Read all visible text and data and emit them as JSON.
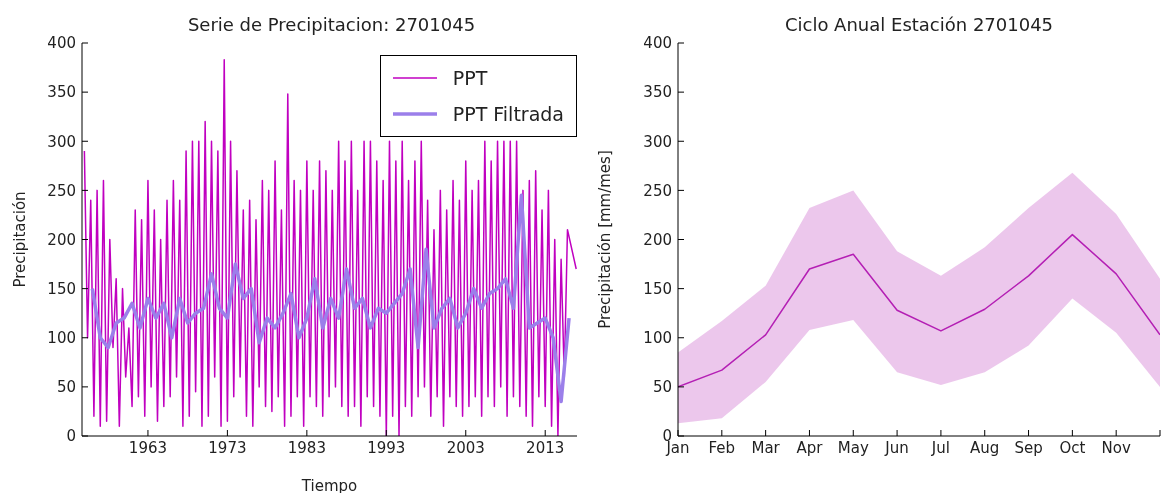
{
  "chart_data": [
    {
      "type": "line",
      "title": "Serie de Precipitacion: 2701045",
      "xlabel": "Tiempo",
      "ylabel": "Precipitación",
      "xlim": [
        1954.7,
        2017.0
      ],
      "xticks": [
        1963,
        1973,
        1983,
        1993,
        2003,
        2013
      ],
      "ylim": [
        0,
        400
      ],
      "yticks": [
        0,
        50,
        100,
        150,
        200,
        250,
        300,
        350,
        400
      ],
      "grid": false,
      "legend": "top right",
      "series": [
        {
          "name": "PPT",
          "color": "#c000c0",
          "x": [
            1955.0,
            1955.4,
            1955.8,
            1956.2,
            1956.6,
            1957.0,
            1957.4,
            1957.8,
            1958.2,
            1958.6,
            1959.0,
            1959.4,
            1959.8,
            1960.2,
            1960.6,
            1961.0,
            1961.4,
            1961.8,
            1962.2,
            1962.6,
            1963.0,
            1963.4,
            1963.8,
            1964.2,
            1964.6,
            1965.0,
            1965.4,
            1965.8,
            1966.2,
            1966.6,
            1967.0,
            1967.4,
            1967.8,
            1968.2,
            1968.6,
            1969.0,
            1969.4,
            1969.8,
            1970.2,
            1970.6,
            1971.0,
            1971.4,
            1971.8,
            1972.2,
            1972.6,
            1973.0,
            1973.4,
            1973.8,
            1974.2,
            1974.6,
            1975.0,
            1975.4,
            1975.8,
            1976.2,
            1976.6,
            1977.0,
            1977.4,
            1977.8,
            1978.2,
            1978.6,
            1979.0,
            1979.4,
            1979.8,
            1980.2,
            1980.6,
            1981.0,
            1981.4,
            1981.8,
            1982.2,
            1982.6,
            1983.0,
            1983.4,
            1983.8,
            1984.2,
            1984.6,
            1985.0,
            1985.4,
            1985.8,
            1986.2,
            1986.6,
            1987.0,
            1987.4,
            1987.8,
            1988.2,
            1988.6,
            1989.0,
            1989.4,
            1989.8,
            1990.2,
            1990.6,
            1991.0,
            1991.4,
            1991.8,
            1992.2,
            1992.6,
            1993.0,
            1993.4,
            1993.8,
            1994.2,
            1994.6,
            1995.0,
            1995.4,
            1995.8,
            1996.2,
            1996.6,
            1997.0,
            1997.4,
            1997.8,
            1998.2,
            1998.6,
            1999.0,
            1999.4,
            1999.8,
            2000.2,
            2000.6,
            2001.0,
            2001.4,
            2001.8,
            2002.2,
            2002.6,
            2003.0,
            2003.4,
            2003.8,
            2004.2,
            2004.6,
            2005.0,
            2005.4,
            2005.8,
            2006.2,
            2006.6,
            2007.0,
            2007.4,
            2007.8,
            2008.2,
            2008.6,
            2009.0,
            2009.4,
            2009.8,
            2010.2,
            2010.6,
            2011.0,
            2011.4,
            2011.8,
            2012.2,
            2012.6,
            2013.0,
            2013.4,
            2013.8,
            2014.2,
            2014.6,
            2015.0,
            2015.4,
            2015.8,
            2016.9
          ],
          "values": [
            290,
            100,
            240,
            20,
            250,
            10,
            260,
            15,
            200,
            90,
            160,
            10,
            150,
            60,
            110,
            30,
            230,
            40,
            220,
            20,
            260,
            50,
            230,
            15,
            200,
            30,
            240,
            40,
            260,
            60,
            240,
            10,
            290,
            20,
            300,
            45,
            300,
            10,
            320,
            20,
            300,
            60,
            290,
            10,
            383,
            15,
            300,
            40,
            270,
            60,
            230,
            20,
            240,
            10,
            220,
            50,
            260,
            30,
            250,
            25,
            280,
            40,
            230,
            10,
            348,
            20,
            260,
            40,
            250,
            10,
            280,
            40,
            250,
            30,
            280,
            20,
            270,
            40,
            250,
            50,
            300,
            30,
            280,
            20,
            300,
            30,
            250,
            10,
            300,
            40,
            300,
            30,
            280,
            20,
            260,
            0,
            300,
            20,
            280,
            0,
            300,
            30,
            260,
            20,
            280,
            40,
            300,
            50,
            240,
            20,
            210,
            40,
            250,
            10,
            230,
            40,
            260,
            30,
            240,
            20,
            280,
            30,
            250,
            40,
            260,
            20,
            300,
            40,
            280,
            30,
            300,
            50,
            300,
            20,
            300,
            40,
            300,
            30,
            250,
            20,
            260,
            10,
            270,
            40,
            230,
            30,
            250,
            10,
            200,
            0,
            180,
            60,
            210,
            170
          ]
        },
        {
          "name": "PPT Filtrada",
          "color": "#9b7fea",
          "x": [
            1956,
            1957,
            1958,
            1959,
            1960,
            1961,
            1962,
            1963,
            1964,
            1965,
            1966,
            1967,
            1968,
            1969,
            1970,
            1971,
            1972,
            1973,
            1974,
            1975,
            1976,
            1977,
            1978,
            1979,
            1980,
            1981,
            1982,
            1983,
            1984,
            1985,
            1986,
            1987,
            1988,
            1989,
            1990,
            1991,
            1992,
            1993,
            1994,
            1995,
            1996,
            1997,
            1998,
            1999,
            2000,
            2001,
            2002,
            2003,
            2004,
            2005,
            2006,
            2007,
            2008,
            2009,
            2010,
            2011,
            2012,
            2013,
            2014,
            2015,
            2016
          ],
          "values": [
            150,
            100,
            90,
            115,
            120,
            135,
            110,
            140,
            120,
            135,
            100,
            140,
            115,
            125,
            130,
            165,
            130,
            120,
            175,
            140,
            150,
            95,
            120,
            110,
            125,
            145,
            100,
            120,
            160,
            110,
            140,
            120,
            170,
            130,
            140,
            110,
            130,
            125,
            135,
            145,
            170,
            90,
            190,
            110,
            130,
            140,
            110,
            125,
            150,
            130,
            145,
            150,
            160,
            130,
            245,
            110,
            115,
            120,
            100,
            35,
            120
          ]
        }
      ]
    },
    {
      "type": "line",
      "title": "Ciclo Anual Estación 2701045",
      "ylabel": "Precipitación [mm/mes]",
      "categories": [
        "Jan",
        "Feb",
        "Mar",
        "Apr",
        "May",
        "Jun",
        "Jul",
        "Aug",
        "Sep",
        "Oct",
        "Nov",
        null
      ],
      "ylim": [
        0,
        400
      ],
      "yticks": [
        0,
        50,
        100,
        150,
        200,
        250,
        300,
        350,
        400
      ],
      "grid": false,
      "legend": false,
      "series": [
        {
          "color": "#b41fb4",
          "values": [
            50,
            67,
            103,
            170,
            185,
            128,
            107,
            129,
            163,
            205,
            165,
            103
          ],
          "lower": [
            13,
            18,
            55,
            108,
            118,
            65,
            52,
            65,
            92,
            140,
            105,
            50
          ],
          "upper": [
            85,
            117,
            153,
            232,
            250,
            188,
            163,
            192,
            232,
            268,
            226,
            160
          ]
        }
      ]
    }
  ]
}
